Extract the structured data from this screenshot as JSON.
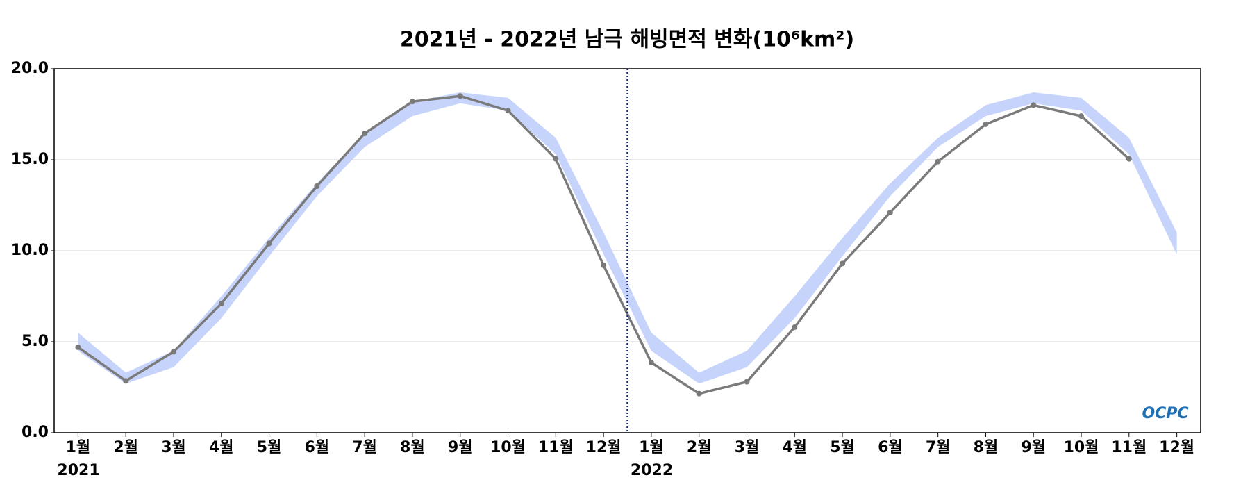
{
  "chart_data": {
    "type": "line",
    "title": "2021년 - 2022년 남극 해빙면적 변화(10⁶km²)",
    "categories": [
      "1월",
      "2월",
      "3월",
      "4월",
      "5월",
      "6월",
      "7월",
      "8월",
      "9월",
      "10월",
      "11월",
      "12월",
      "1월",
      "2월",
      "3월",
      "4월",
      "5월",
      "6월",
      "7월",
      "8월",
      "9월",
      "10월",
      "11월",
      "12월"
    ],
    "category_groups": [
      "2021",
      "2022"
    ],
    "band": {
      "color": "#c6d3fb",
      "upper": [
        5.5,
        3.3,
        4.5,
        7.5,
        10.7,
        13.7,
        16.5,
        18.2,
        18.7,
        18.4,
        16.2,
        11.0,
        5.5,
        3.3,
        4.5,
        7.5,
        10.7,
        13.7,
        16.2,
        18.0,
        18.7,
        18.4,
        16.2,
        11.0
      ],
      "lower": [
        4.5,
        2.7,
        3.6,
        6.3,
        9.7,
        13.0,
        15.7,
        17.4,
        18.1,
        17.7,
        15.3,
        9.8,
        4.5,
        2.7,
        3.6,
        6.3,
        9.7,
        13.0,
        15.7,
        17.4,
        18.1,
        17.7,
        15.3,
        9.8
      ]
    },
    "series": [
      {
        "color": "#7a7a7a",
        "values": [
          4.7,
          2.85,
          4.45,
          7.1,
          10.4,
          13.55,
          16.45,
          18.2,
          18.5,
          17.7,
          15.05,
          9.2,
          3.85,
          2.15,
          2.8,
          5.8,
          9.3,
          12.1,
          14.9,
          16.95,
          18.0,
          17.4,
          15.05,
          null
        ]
      }
    ],
    "ylim": [
      0,
      20
    ],
    "yticks": [
      {
        "value": 0,
        "label": "0.0"
      },
      {
        "value": 5,
        "label": "5.0"
      },
      {
        "value": 10,
        "label": "10.0"
      },
      {
        "value": 15,
        "label": "15.0"
      },
      {
        "value": 20,
        "label": "20.0"
      }
    ],
    "grid": true,
    "watermark": "OCPC"
  }
}
